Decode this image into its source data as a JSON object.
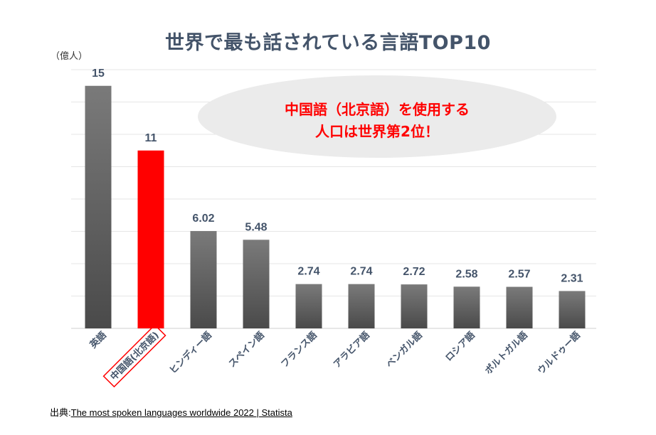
{
  "title": "世界で最も話されている言語TOP10",
  "unit_label": "（億人）",
  "callout": {
    "line1": "中国語（北京語）を使用する",
    "line2": "人口は世界第2位！"
  },
  "source": {
    "prefix": "出典:",
    "link_text": "The most spoken languages worldwide 2022 | Statista"
  },
  "colors": {
    "bar_default_top": "#7a7a7a",
    "bar_default_bottom": "#4a4a4a",
    "bar_highlight": "#ff0000",
    "value_label": "#44546a",
    "callout_fill": "#ebebeb",
    "callout_text": "#ff0000",
    "grid": "#e6e6e6"
  },
  "chart_data": {
    "type": "bar",
    "categories": [
      "英語",
      "中国語(北京語)",
      "ヒンディー語",
      "スペイン語",
      "フランス語",
      "アラビア語",
      "ベンガル語",
      "ロシア語",
      "ポルトガル語",
      "ウルドゥー語"
    ],
    "values": [
      15,
      11,
      6.02,
      5.48,
      2.74,
      2.74,
      2.72,
      2.58,
      2.57,
      2.31
    ],
    "value_labels": [
      "15",
      "11",
      "6.02",
      "5.48",
      "2.74",
      "2.74",
      "2.72",
      "2.58",
      "2.57",
      "2.31"
    ],
    "highlight_index": 1,
    "ylim": [
      0,
      16
    ],
    "grid": true,
    "title": "世界で最も話されている言語TOP10",
    "ylabel": "（億人）"
  }
}
